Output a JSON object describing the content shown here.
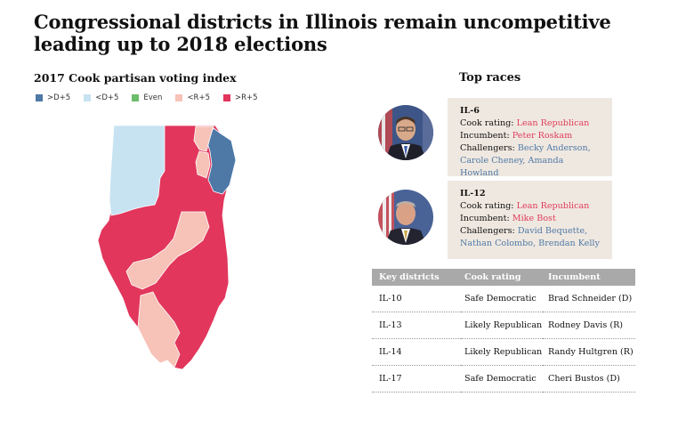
{
  "title": "Congressional districts in Illinois remain uncompetitive leading up to 2018 elections",
  "map_title": "2017 Cook partisan voting index",
  "legend": [
    {
      "label": ">D+5",
      "color": "#4e79a7"
    },
    {
      "label": "<D+5",
      "color": "#c7e3f1"
    },
    {
      "label": "Even",
      "color": "#6bbd6b"
    },
    {
      "label": "<R+5",
      "color": "#f7c2b7"
    },
    {
      "label": ">R+5",
      "color": "#e2365c"
    }
  ],
  "top_races": {
    "title": "Top races",
    "races": [
      {
        "district": "IL-6",
        "rating_label": "Cook rating: ",
        "rating": "Lean Republican",
        "incumbent_label": "Incumbent: ",
        "incumbent": "Peter Roskam",
        "challengers_label": "Challengers: ",
        "challengers_line1": "Becky Anderson,",
        "challengers_line2": "Carole Cheney, Amanda Howland"
      },
      {
        "district": "IL-12",
        "rating_label": "Cook rating: ",
        "rating": "Lean Republican",
        "incumbent_label": "Incumbent: ",
        "incumbent": "Mike Bost",
        "challengers_label": "Challengers: ",
        "challengers_line1": "David Bequette,",
        "challengers_line2": "Nathan Colombo, Brendan Kelly"
      }
    ]
  },
  "chart_data": {
    "type": "table",
    "columns": [
      "Key districts",
      "Cook rating",
      "Incumbent"
    ],
    "rows": [
      [
        "IL-10",
        "Safe Democratic",
        "Brad Schneider (D)"
      ],
      [
        "IL-13",
        "Likely Republican",
        "Rodney Davis (R)"
      ],
      [
        "IL-14",
        "Likely Republican",
        "Randy Hultgren (R)"
      ],
      [
        "IL-17",
        "Safe Democratic",
        "Cheri Bustos (D)"
      ]
    ]
  }
}
